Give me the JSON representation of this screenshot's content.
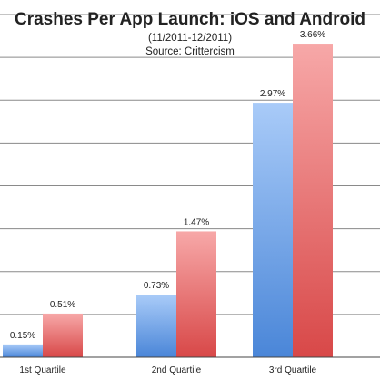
{
  "chart_data": {
    "type": "bar",
    "title": "Crashes Per App Launch: iOS and Android",
    "subtitle_lines": [
      "(11/2011-12/2011)",
      "Source: Crittercism"
    ],
    "categories": [
      "1st Quartile",
      "2nd Quartile",
      "3rd Quartile"
    ],
    "series": [
      {
        "values": [
          0.15,
          0.73,
          2.97
        ],
        "labels": [
          "0.15%",
          "0.73%",
          "2.97%"
        ],
        "color_light": "#a9cbf8",
        "color_dark": "#4a86d8"
      },
      {
        "values": [
          0.51,
          1.47,
          3.66
        ],
        "labels": [
          "0.51%",
          "1.47%",
          "3.66%"
        ],
        "color_light": "#f7a8a8",
        "color_dark": "#d84848"
      }
    ],
    "ylim": [
      0,
      4.0
    ],
    "gridlines": [
      0.5,
      1.0,
      1.5,
      2.0,
      2.5,
      3.0,
      3.5,
      4.0
    ],
    "grid": true,
    "legend": false,
    "xlabel": "",
    "ylabel": ""
  }
}
